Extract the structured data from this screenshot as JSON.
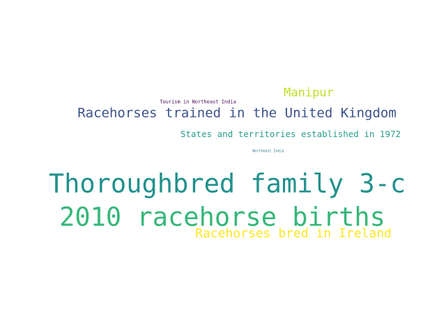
{
  "words": [
    {
      "text": "Manipur",
      "color": "#bddf26"
    },
    {
      "text": "Tourism in Northeast India",
      "color": "#440154"
    },
    {
      "text": "Racehorses trained in the United Kingdom",
      "color": "#3b528b"
    },
    {
      "text": "States and territories established in 1972",
      "color": "#2a9d8f"
    },
    {
      "text": "Northeast India",
      "color": "#2c728e"
    },
    {
      "text": "Thoroughbred family 3-c",
      "color": "#21918c"
    },
    {
      "text": "2010 racehorse births",
      "color": "#35b779"
    },
    {
      "text": "Racehorses bred in Ireland",
      "color": "#fde725"
    }
  ]
}
